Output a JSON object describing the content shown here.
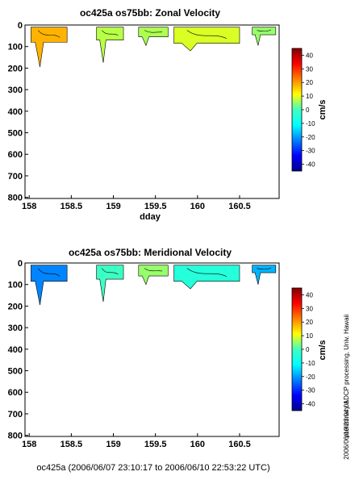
{
  "chart_data": [
    {
      "type": "heatmap",
      "title": "oc425a os75bb: Zonal Velocity",
      "xlabel": "dday",
      "ylabel": "",
      "xlim": [
        157.95,
        160.97
      ],
      "ylim": [
        805,
        0
      ],
      "xticks": [
        "158",
        "158.5",
        "159",
        "159.5",
        "160",
        "160.5"
      ],
      "yticks": [
        "0",
        "100",
        "200",
        "300",
        "400",
        "500",
        "600",
        "700",
        "800"
      ],
      "colorbar": {
        "label": "cm/s",
        "range": [
          -45,
          45
        ],
        "ticks": [
          "40",
          "30",
          "20",
          "10",
          "0",
          "-10",
          "-20",
          "-30",
          "-40"
        ]
      },
      "patches": [
        {
          "x0": 158.02,
          "x1": 158.45,
          "depth": 80,
          "maxdepth": 195,
          "value": 18
        },
        {
          "x0": 158.8,
          "x1": 159.12,
          "depth": 70,
          "maxdepth": 175,
          "value": 5
        },
        {
          "x0": 159.3,
          "x1": 159.65,
          "depth": 55,
          "maxdepth": 95,
          "value": 4
        },
        {
          "x0": 159.72,
          "x1": 160.5,
          "depth": 85,
          "maxdepth": 120,
          "value": 8
        },
        {
          "x0": 160.65,
          "x1": 160.93,
          "depth": 45,
          "maxdepth": 95,
          "value": 2
        }
      ]
    },
    {
      "type": "heatmap",
      "title": "oc425a os75bb: Meridional Velocity",
      "xlabel": "",
      "ylabel": "",
      "xlim": [
        157.95,
        160.97
      ],
      "ylim": [
        805,
        0
      ],
      "xticks": [
        "158",
        "158.5",
        "159",
        "159.5",
        "160",
        "160.5"
      ],
      "yticks": [
        "0",
        "100",
        "200",
        "300",
        "400",
        "500",
        "600",
        "700",
        "800"
      ],
      "colorbar": {
        "label": "cm/s",
        "range": [
          -45,
          45
        ],
        "ticks": [
          "40",
          "30",
          "20",
          "10",
          "0",
          "-10",
          "-20",
          "-30",
          "-40"
        ]
      },
      "patches": [
        {
          "x0": 158.02,
          "x1": 158.45,
          "depth": 85,
          "maxdepth": 195,
          "value": -22
        },
        {
          "x0": 158.8,
          "x1": 159.12,
          "depth": 75,
          "maxdepth": 180,
          "value": -6
        },
        {
          "x0": 159.3,
          "x1": 159.65,
          "depth": 60,
          "maxdepth": 100,
          "value": 2
        },
        {
          "x0": 159.72,
          "x1": 160.5,
          "depth": 85,
          "maxdepth": 120,
          "value": -8
        },
        {
          "x0": 160.65,
          "x1": 160.93,
          "depth": 45,
          "maxdepth": 100,
          "value": -18
        }
      ]
    }
  ],
  "footer": "oc425a (2006/06/07 23:10:17 to 2006/06/10 22:53:22 UTC)",
  "side_note": "preliminary ADCP processing,   Univ. Hawaii",
  "side_stamp": "2006/06/10 23:04:01"
}
